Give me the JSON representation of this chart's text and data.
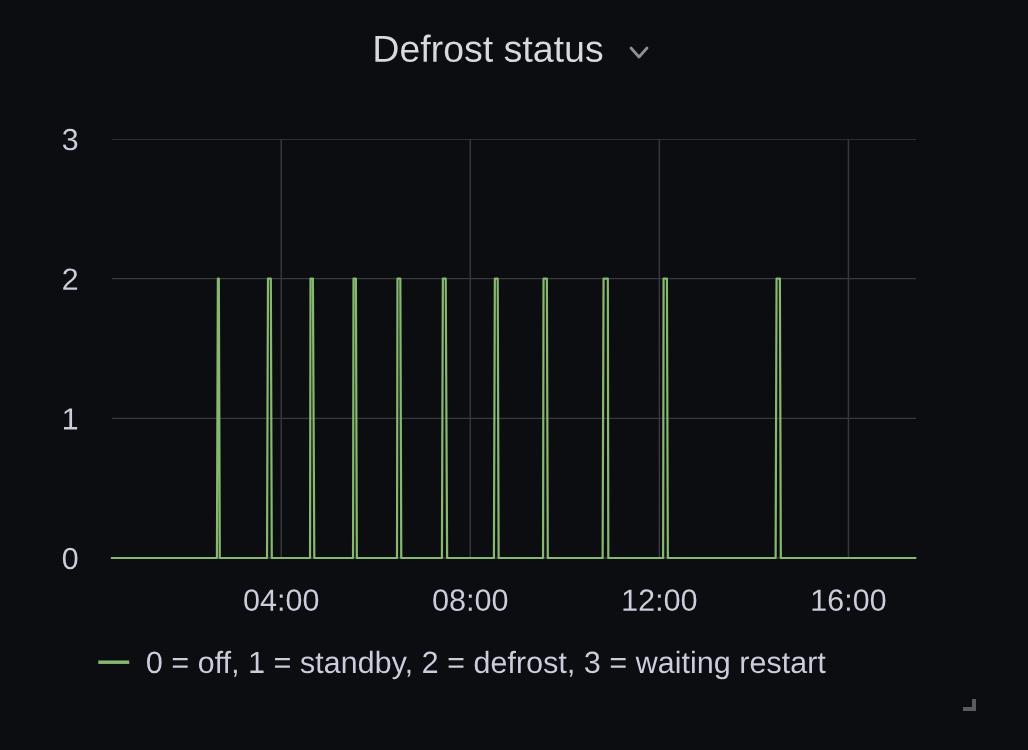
{
  "chart_data": {
    "type": "line",
    "title": "Defrost status",
    "x": [
      0.42,
      2.64,
      2.66,
      2.68,
      2.7,
      3.7,
      3.72,
      3.78,
      3.8,
      4.61,
      4.62,
      4.67,
      4.7,
      5.52,
      5.53,
      5.58,
      5.6,
      6.45,
      6.46,
      6.52,
      6.54,
      7.4,
      7.42,
      7.48,
      7.51,
      8.5,
      8.52,
      8.58,
      8.6,
      9.54,
      9.55,
      9.62,
      9.64,
      10.8,
      10.82,
      10.91,
      10.92,
      12.08,
      12.09,
      12.16,
      12.18,
      14.46,
      14.48,
      14.55,
      14.57,
      17.41
    ],
    "series": [
      {
        "name": "0 = off, 1 = standby, 2 = defrost, 3 = waiting restart",
        "color": "#86b86f",
        "values": [
          0,
          0,
          2,
          2,
          0,
          0,
          2,
          2,
          0,
          0,
          2,
          2,
          0,
          0,
          2,
          2,
          0,
          0,
          2,
          2,
          0,
          0,
          2,
          2,
          0,
          0,
          2,
          2,
          0,
          0,
          2,
          2,
          0,
          0,
          2,
          2,
          0,
          0,
          2,
          2,
          0,
          0,
          2,
          2,
          0,
          0
        ]
      }
    ],
    "xlim": [
      0.42,
      17.43
    ],
    "xticks": [
      {
        "value": 4,
        "label": "04:00"
      },
      {
        "value": 8,
        "label": "08:00"
      },
      {
        "value": 12,
        "label": "12:00"
      },
      {
        "value": 16,
        "label": "16:00"
      }
    ],
    "ylim": [
      0,
      3
    ],
    "yticks": [
      0,
      1,
      2,
      3
    ],
    "grid": true,
    "legend": "bottom",
    "line_style": "solid"
  }
}
